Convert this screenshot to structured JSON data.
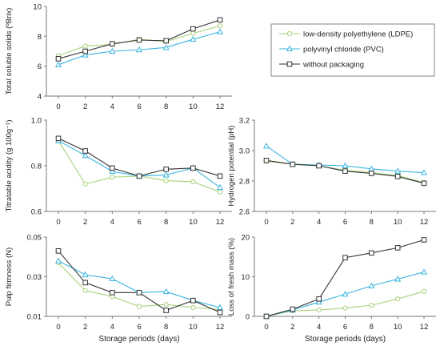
{
  "figure": {
    "legend": {
      "entries": [
        "low-density polyethylene (LDPE)",
        "polyvinyl chloride (PVC)",
        "without packaging"
      ]
    },
    "xlabel": "Storage periods (days)"
  },
  "colors": {
    "LDPE": "#a8d17a",
    "PVC": "#3ab4e0",
    "without packaging": "#333333",
    "axis": "#777777"
  },
  "chart_data": [
    {
      "type": "line",
      "ylabel": "Total soluble solids (ºBrix)",
      "xlabel": "",
      "ylim": [
        4,
        10
      ],
      "yticks": [
        "4",
        "6",
        "8",
        "10"
      ],
      "x": [
        0,
        2,
        4,
        6,
        8,
        10,
        12
      ],
      "xticks": [
        "0",
        "2",
        "4",
        "6",
        "8",
        "10",
        "12"
      ],
      "series": [
        {
          "name": "low-density polyethylene (LDPE)",
          "marker": "circle",
          "values": [
            6.7,
            7.35,
            7.45,
            7.8,
            7.65,
            8.2,
            8.7
          ]
        },
        {
          "name": "polyvinyl chloride (PVC)",
          "marker": "triangle",
          "values": [
            6.1,
            6.75,
            7.0,
            7.1,
            7.25,
            7.8,
            8.3
          ]
        },
        {
          "name": "without packaging",
          "marker": "square",
          "values": [
            6.5,
            7.0,
            7.5,
            7.75,
            7.7,
            8.5,
            9.1
          ]
        }
      ]
    },
    {
      "type": "line",
      "ylabel": "Titratable acidity (g 100g⁻¹)",
      "xlabel": "",
      "ylim": [
        0.6,
        1.0
      ],
      "yticks": [
        "0.6",
        "0.8",
        "1.0"
      ],
      "x": [
        0,
        2,
        4,
        6,
        8,
        10,
        12
      ],
      "xticks": [
        "0",
        "2",
        "4",
        "6",
        "8",
        "10",
        "12"
      ],
      "series": [
        {
          "name": "low-density polyethylene (LDPE)",
          "marker": "circle",
          "values": [
            0.91,
            0.72,
            0.75,
            0.755,
            0.735,
            0.73,
            0.685
          ]
        },
        {
          "name": "polyvinyl chloride (PVC)",
          "marker": "triangle",
          "values": [
            0.91,
            0.845,
            0.775,
            0.755,
            0.76,
            0.79,
            0.705
          ]
        },
        {
          "name": "without packaging",
          "marker": "square",
          "values": [
            0.92,
            0.865,
            0.79,
            0.755,
            0.785,
            0.79,
            0.755
          ]
        }
      ]
    },
    {
      "type": "line",
      "ylabel": "Hydrogen potential (pH)",
      "xlabel": "",
      "ylim": [
        2.6,
        3.2
      ],
      "yticks": [
        "2.6",
        "2.8",
        "3.0",
        "3.2"
      ],
      "x": [
        0,
        2,
        4,
        6,
        8,
        10,
        12
      ],
      "xticks": [
        "0",
        "2",
        "4",
        "6",
        "8",
        "10",
        "12"
      ],
      "series": [
        {
          "name": "low-density polyethylene (LDPE)",
          "marker": "circle",
          "values": [
            2.93,
            2.91,
            2.9,
            2.87,
            2.855,
            2.835,
            2.79
          ]
        },
        {
          "name": "polyvinyl chloride (PVC)",
          "marker": "triangle",
          "values": [
            3.03,
            2.91,
            2.905,
            2.9,
            2.88,
            2.865,
            2.855
          ]
        },
        {
          "name": "without packaging",
          "marker": "square",
          "values": [
            2.935,
            2.91,
            2.9,
            2.865,
            2.85,
            2.83,
            2.785
          ]
        }
      ]
    },
    {
      "type": "line",
      "ylabel": "Pulp firmness (N)",
      "xlabel": "Storage periods (days)",
      "ylim": [
        0.01,
        0.05
      ],
      "yticks": [
        "0.01",
        "0.03",
        "0.05"
      ],
      "x": [
        0,
        2,
        4,
        6,
        8,
        10,
        12
      ],
      "xticks": [
        "0",
        "2",
        "4",
        "6",
        "8",
        "10",
        "12"
      ],
      "series": [
        {
          "name": "low-density polyethylene (LDPE)",
          "marker": "circle",
          "values": [
            0.037,
            0.023,
            0.02,
            0.015,
            0.016,
            0.0145,
            0.0135
          ]
        },
        {
          "name": "polyvinyl chloride (PVC)",
          "marker": "triangle",
          "values": [
            0.038,
            0.031,
            0.029,
            0.022,
            0.0225,
            0.018,
            0.0145
          ]
        },
        {
          "name": "without packaging",
          "marker": "square",
          "values": [
            0.043,
            0.027,
            0.022,
            0.022,
            0.013,
            0.018,
            0.012
          ]
        }
      ]
    },
    {
      "type": "line",
      "ylabel": "Loss of fresh mass (%)",
      "xlabel": "Storage periods (days)",
      "ylim": [
        0,
        20
      ],
      "yticks": [
        "0",
        "10",
        "20"
      ],
      "x": [
        0,
        2,
        4,
        6,
        8,
        10,
        12
      ],
      "xticks": [
        "0",
        "2",
        "4",
        "6",
        "8",
        "10",
        "12"
      ],
      "series": [
        {
          "name": "low-density polyethylene (LDPE)",
          "marker": "circle",
          "values": [
            0,
            1.4,
            1.6,
            2.1,
            2.8,
            4.4,
            6.3
          ]
        },
        {
          "name": "polyvinyl chloride (PVC)",
          "marker": "triangle",
          "values": [
            0,
            1.6,
            3.6,
            5.6,
            7.7,
            9.4,
            11.2
          ]
        },
        {
          "name": "without packaging",
          "marker": "square",
          "values": [
            0,
            1.8,
            4.4,
            14.8,
            16.0,
            17.3,
            19.3
          ]
        }
      ]
    }
  ]
}
